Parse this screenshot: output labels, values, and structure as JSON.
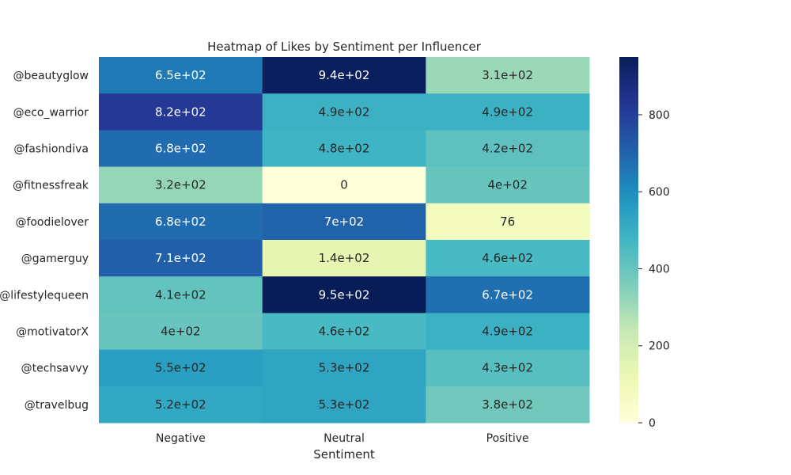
{
  "chart_data": {
    "type": "heatmap",
    "title": "Heatmap of Likes by Sentiment per Influencer",
    "xlabel": "Sentiment",
    "ylabel": "",
    "columns": [
      "Negative",
      "Neutral",
      "Positive"
    ],
    "rows": [
      "@beautyglow",
      "@eco_warrior",
      "@fashiondiva",
      "@fitnessfreak",
      "@foodielover",
      "@gamerguy",
      "@lifestylequeen",
      "@motivatorX",
      "@techsavvy",
      "@travelbug"
    ],
    "values": [
      [
        650,
        940,
        310
      ],
      [
        820,
        490,
        490
      ],
      [
        680,
        480,
        420
      ],
      [
        320,
        0,
        400
      ],
      [
        680,
        700,
        76
      ],
      [
        710,
        140,
        460
      ],
      [
        410,
        950,
        670
      ],
      [
        400,
        460,
        490
      ],
      [
        550,
        530,
        430
      ],
      [
        520,
        530,
        380
      ]
    ],
    "annotations": [
      [
        "6.5e+02",
        "9.4e+02",
        "3.1e+02"
      ],
      [
        "8.2e+02",
        "4.9e+02",
        "4.9e+02"
      ],
      [
        "6.8e+02",
        "4.8e+02",
        "4.2e+02"
      ],
      [
        "3.2e+02",
        "0",
        "4e+02"
      ],
      [
        "6.8e+02",
        "7e+02",
        "76"
      ],
      [
        "7.1e+02",
        "1.4e+02",
        "4.6e+02"
      ],
      [
        "4.1e+02",
        "9.5e+02",
        "6.7e+02"
      ],
      [
        "4e+02",
        "4.6e+02",
        "4.9e+02"
      ],
      [
        "5.5e+02",
        "5.3e+02",
        "4.3e+02"
      ],
      [
        "5.2e+02",
        "5.3e+02",
        "3.8e+02"
      ]
    ],
    "colormap": "YlGnBu",
    "vmin": 0,
    "vmax": 950,
    "colorbar_ticks": [
      0,
      200,
      400,
      600,
      800
    ],
    "colorbar_tick_labels": [
      "0",
      "200",
      "400",
      "600",
      "800"
    ],
    "grid": false,
    "legend": "colorbar-right"
  }
}
